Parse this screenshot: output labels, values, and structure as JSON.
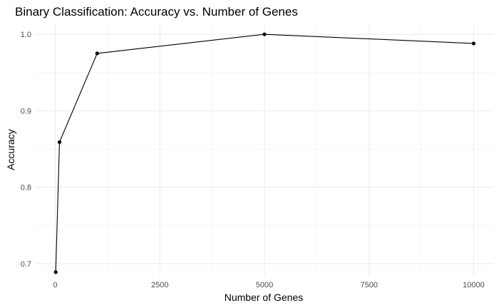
{
  "chart_data": {
    "type": "line",
    "title": "Binary Classification: Accuracy vs. Number of Genes",
    "xlabel": "Number of Genes",
    "ylabel": "Accuracy",
    "x": [
      10,
      100,
      1000,
      5000,
      10000
    ],
    "y": [
      0.689,
      0.859,
      0.975,
      1.0,
      0.988
    ],
    "xlim": [
      -470,
      10470
    ],
    "ylim": [
      0.685,
      1.015
    ],
    "xticks": [
      0,
      2500,
      5000,
      7500,
      10000
    ],
    "xtick_labels": [
      "0",
      "2500",
      "5000",
      "7500",
      "10000"
    ],
    "yticks": [
      0.7,
      0.8,
      0.9,
      1.0
    ],
    "ytick_labels": [
      "0.7",
      "0.8",
      "0.9",
      "1.0"
    ],
    "grid": true,
    "legend": "none",
    "line_color": "#000000",
    "point_color": "#000000",
    "grid_color": "#ebebeb"
  }
}
